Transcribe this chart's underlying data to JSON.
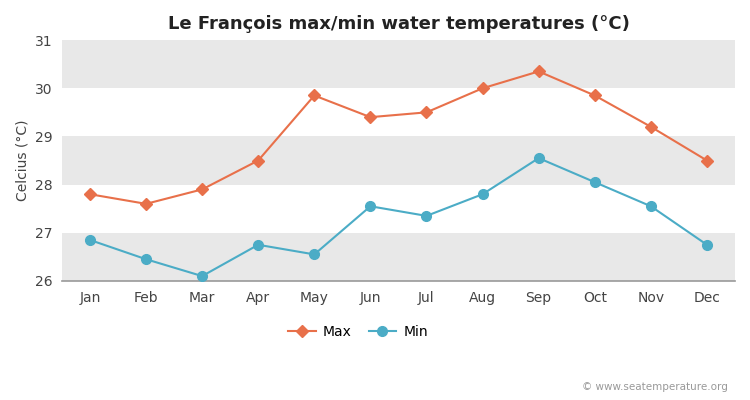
{
  "title": "Le François max/min water temperatures (°C)",
  "ylabel": "Celcius (°C)",
  "months": [
    "Jan",
    "Feb",
    "Mar",
    "Apr",
    "May",
    "Jun",
    "Jul",
    "Aug",
    "Sep",
    "Oct",
    "Nov",
    "Dec"
  ],
  "max_temps": [
    27.8,
    27.6,
    27.9,
    28.5,
    29.85,
    29.4,
    29.5,
    30.0,
    30.35,
    29.85,
    29.2,
    28.5
  ],
  "min_temps": [
    26.85,
    26.45,
    26.1,
    26.75,
    26.55,
    27.55,
    27.35,
    27.8,
    28.55,
    28.05,
    27.55,
    26.75
  ],
  "max_color": "#e8704a",
  "min_color": "#4bacc6",
  "bg_color": "#ffffff",
  "plot_bg_color": "#ffffff",
  "band_color": "#e8e8e8",
  "ylim_min": 26.0,
  "ylim_max": 31.0,
  "yticks": [
    26,
    27,
    28,
    29,
    30,
    31
  ],
  "legend_labels": [
    "Max",
    "Min"
  ],
  "watermark": "© www.seatemperature.org"
}
